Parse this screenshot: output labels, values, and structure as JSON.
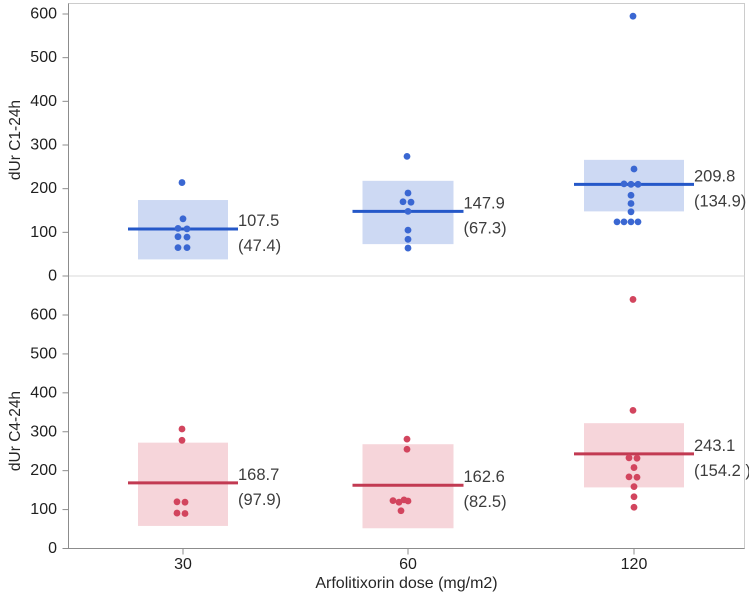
{
  "axis": {
    "x_title": "Arfolitixorin dose (mg/m2)",
    "y_title_top": "dUr C1-24h",
    "y_title_bottom": "dUr C4-24h"
  },
  "chart_data": {
    "type": "scatter",
    "title": "",
    "xlabel": "Arfolitixorin dose (mg/m2)",
    "x_categories": [
      "30",
      "60",
      "120"
    ],
    "legend": "none",
    "grid": "off",
    "panels": [
      {
        "ylabel": "dUr C1-24h",
        "ylim": [
          0,
          600
        ],
        "y_ticks": [
          0,
          100,
          200,
          300,
          400,
          500,
          600
        ],
        "colors": {
          "dot": "#3A67D2",
          "mean_line": "#2558C8",
          "band": "#CDD9F3"
        },
        "groups": [
          {
            "dose": "30",
            "mean": 107.5,
            "sd": 47.4,
            "mean_label": "107.5",
            "sd_label": "(47.4)",
            "band": [
              38,
              174
            ],
            "values": [
              214,
              131,
              109,
              108,
              90,
              89,
              65,
              65
            ],
            "offsets": [
              -1,
              0,
              -5,
              4,
              -5,
              4,
              -5,
              4
            ]
          },
          {
            "dose": "60",
            "mean": 147.9,
            "sd": 67.3,
            "mean_label": "147.9",
            "sd_label": "(67.3)",
            "band": [
              73,
              218
            ],
            "values": [
              274,
              190,
              170,
              169,
              148,
              105,
              84,
              64
            ],
            "offsets": [
              -1,
              0,
              -5,
              3,
              0,
              0,
              0,
              0
            ]
          },
          {
            "dose": "120",
            "mean": 209.8,
            "sd": 134.9,
            "mean_label": "209.8",
            "sd_label": "(134.9)",
            "band": [
              148,
              266
            ],
            "values": [
              595,
              245,
              211,
              210,
              210,
              185,
              166,
              147,
              124,
              124,
              124,
              124
            ],
            "offsets": [
              -1,
              0,
              -10,
              -3,
              4,
              -3,
              -3,
              -3,
              -17,
              -10,
              -3,
              4
            ]
          }
        ]
      },
      {
        "ylabel": "dUr C4-24h",
        "ylim": [
          0,
          600
        ],
        "y_ticks": [
          0,
          100,
          200,
          300,
          400,
          500,
          600
        ],
        "colors": {
          "dot": "#D2455E",
          "mean_line": "#C23A52",
          "band": "#F6D5DA"
        },
        "groups": [
          {
            "dose": "30",
            "mean": 168.7,
            "sd": 97.9,
            "mean_label": "168.7",
            "sd_label": "(97.9)",
            "band": [
              58,
              272
            ],
            "values": [
              307,
              278,
              120,
              119,
              91,
              90
            ],
            "offsets": [
              -1,
              -1,
              -6,
              2,
              -6,
              2
            ]
          },
          {
            "dose": "60",
            "mean": 162.6,
            "sd": 82.5,
            "mean_label": "162.6",
            "sd_label": "(82.5)",
            "band": [
              52,
              268
            ],
            "values": [
              281,
              255,
              125,
              123,
              122,
              119,
              97
            ],
            "offsets": [
              -1,
              -1,
              -4,
              -15,
              0,
              -9,
              -7
            ]
          },
          {
            "dose": "120",
            "mean": 243.1,
            "sd": 154.2,
            "mean_label": "243.1",
            "sd_label": "(154.2 )",
            "band": [
              157,
              322
            ],
            "values": [
              640,
              355,
              233,
              232,
              208,
              184,
              183,
              159,
              133,
              106
            ],
            "offsets": [
              -1,
              -1,
              -5,
              3,
              0,
              -5,
              3,
              0,
              0,
              0
            ]
          }
        ]
      }
    ],
    "style": {
      "frame_color": "#CCCCCC",
      "axis_color": "#8C8C8C",
      "divider_color": "#D9D9D9",
      "tick_text_color": "#1F1F1F",
      "annotation_text_color": "#3D3D3D"
    }
  }
}
